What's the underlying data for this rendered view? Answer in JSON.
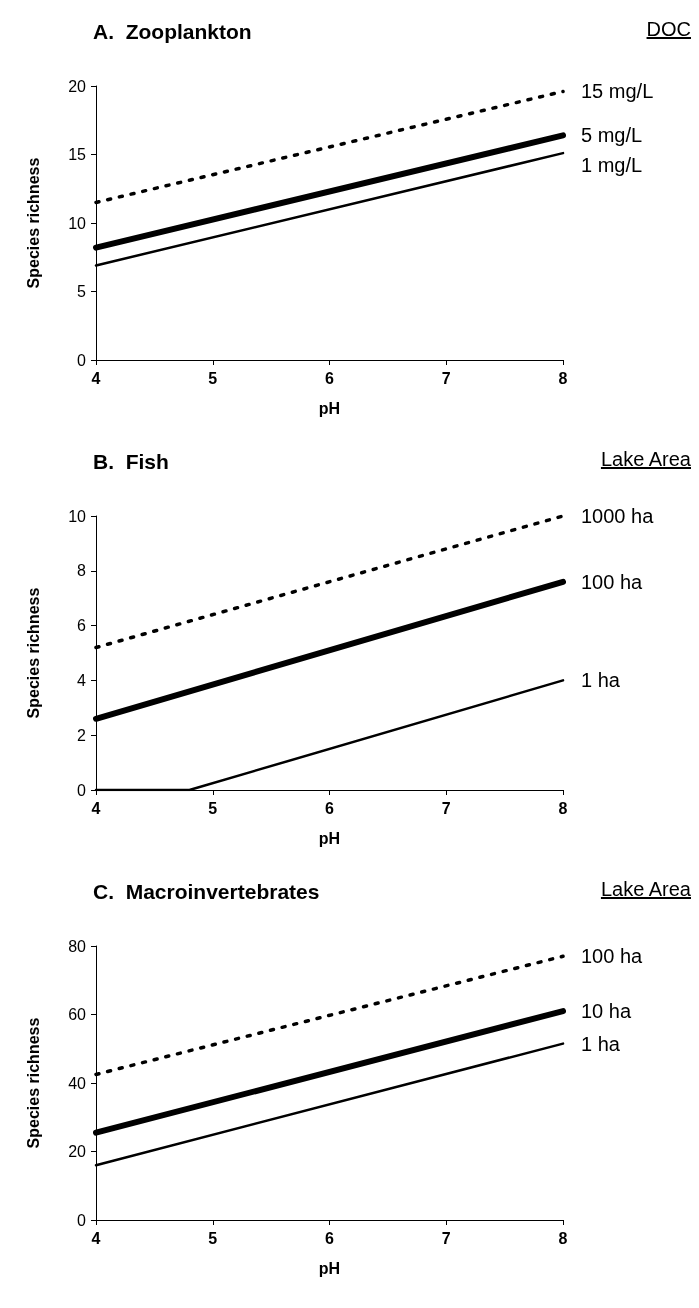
{
  "chart_data": [
    {
      "type": "line",
      "title": "A.  Zooplankton",
      "xlabel": "pH",
      "ylabel": "Species richness",
      "legend_title": "DOC",
      "xlim": [
        4,
        8
      ],
      "xticks": [
        4,
        5,
        6,
        7,
        8
      ],
      "ylim": [
        0,
        20
      ],
      "yticks": [
        0,
        5,
        10,
        15,
        20
      ],
      "grid": false,
      "legend": false,
      "marker": "none",
      "series": [
        {
          "name": "15 mg/L",
          "color": "#000000",
          "line_style": "dotted",
          "x": [
            4,
            8
          ],
          "values": [
            11.5,
            19.6
          ]
        },
        {
          "name": "5 mg/L",
          "color": "#000000",
          "line_style": "solid",
          "x": [
            4,
            8
          ],
          "values": [
            8.2,
            16.4
          ]
        },
        {
          "name": "1 mg/L",
          "color": "#000000",
          "line_style": "solid",
          "x": [
            4,
            8
          ],
          "values": [
            6.9,
            15.1
          ]
        }
      ]
    },
    {
      "type": "line",
      "title": "B.  Fish",
      "xlabel": "pH",
      "ylabel": "Species richness",
      "legend_title": "Lake Area",
      "xlim": [
        4,
        8
      ],
      "xticks": [
        4,
        5,
        6,
        7,
        8
      ],
      "ylim": [
        0,
        10
      ],
      "yticks": [
        0,
        2,
        4,
        6,
        8,
        10
      ],
      "grid": false,
      "legend": false,
      "marker": "none",
      "series": [
        {
          "name": "1000 ha",
          "color": "#000000",
          "line_style": "dotted",
          "x": [
            4,
            8
          ],
          "values": [
            5.2,
            10
          ]
        },
        {
          "name": "100 ha",
          "color": "#000000",
          "line_style": "solid",
          "x": [
            4,
            8
          ],
          "values": [
            2.6,
            7.6
          ]
        },
        {
          "name": "1 ha",
          "color": "#000000",
          "line_style": "solid",
          "x": [
            4,
            4.8,
            8
          ],
          "values": [
            0,
            0,
            4
          ]
        }
      ]
    },
    {
      "type": "line",
      "title": "C.  Macroinvertebrates",
      "xlabel": "pH",
      "ylabel": "Species richness",
      "legend_title": "Lake Area",
      "xlim": [
        4,
        8
      ],
      "xticks": [
        4,
        5,
        6,
        7,
        8
      ],
      "ylim": [
        0,
        80
      ],
      "yticks": [
        0,
        20,
        40,
        60,
        80
      ],
      "grid": false,
      "legend": false,
      "marker": "none",
      "series": [
        {
          "name": "100 ha",
          "color": "#000000",
          "line_style": "dotted",
          "x": [
            4,
            8
          ],
          "values": [
            42.5,
            77
          ]
        },
        {
          "name": "10 ha",
          "color": "#000000",
          "line_style": "solid",
          "x": [
            4,
            8
          ],
          "values": [
            25.5,
            61
          ]
        },
        {
          "name": "1 ha",
          "color": "#000000",
          "line_style": "solid",
          "x": [
            4,
            8
          ],
          "values": [
            16,
            51.5
          ]
        }
      ]
    }
  ]
}
